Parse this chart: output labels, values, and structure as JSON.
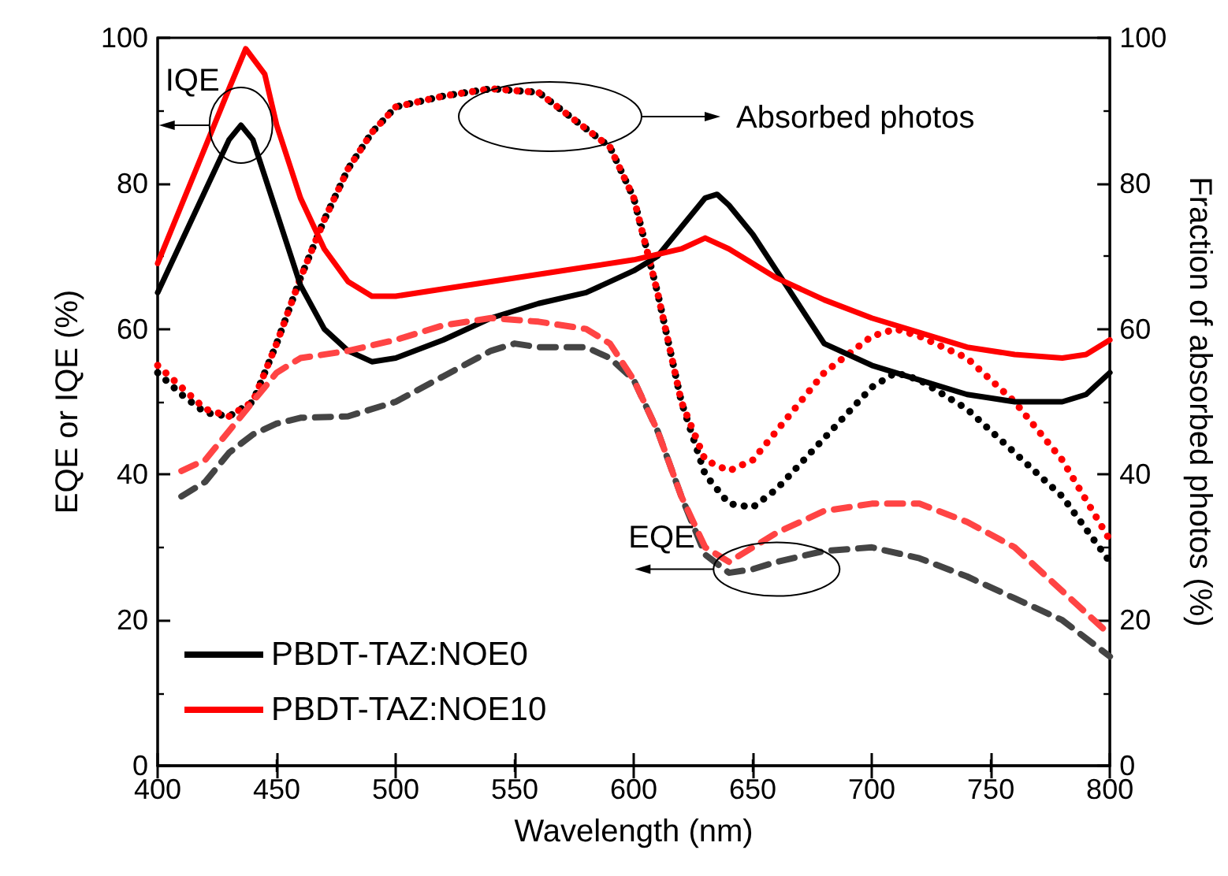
{
  "chart_data": {
    "type": "line",
    "xlabel": "Wavelength (nm)",
    "ylabel": "EQE or IQE (%)",
    "y2label": "Fraction of absorbed photos (%)",
    "xlim": [
      400,
      800
    ],
    "xticks": [
      400,
      450,
      500,
      550,
      600,
      650,
      700,
      750,
      800
    ],
    "ylim": [
      0,
      100
    ],
    "yticks": [
      0,
      20,
      40,
      60,
      80,
      100
    ],
    "y2lim": [
      0,
      100
    ],
    "y2ticks": [
      0,
      20,
      40,
      60,
      80,
      100
    ],
    "grid": false,
    "legend": "bottom left",
    "marker": "none",
    "annotations": [
      {
        "text": "IQE",
        "x": 435,
        "y": 88
      },
      "Absorbed photos",
      {
        "text": "EQE",
        "x": 660,
        "y": 27
      }
    ],
    "series": [
      {
        "name": "PBDT-TAZ:NOE0",
        "color": "#000000",
        "line_style": "solid",
        "x": [
          400,
          410,
          420,
          430,
          435,
          440,
          450,
          460,
          470,
          480,
          490,
          500,
          520,
          540,
          560,
          580,
          600,
          610,
          620,
          630,
          635,
          640,
          650,
          660,
          670,
          680,
          700,
          720,
          740,
          760,
          780,
          790,
          800
        ],
        "values": [
          65,
          72,
          79,
          86,
          88,
          86,
          76,
          66,
          60,
          57,
          55.5,
          56,
          58.5,
          61.5,
          63.5,
          65,
          68,
          70,
          74,
          78,
          78.5,
          77,
          73,
          68,
          63,
          58,
          55,
          53,
          51,
          50,
          50,
          51,
          54
        ]
      },
      {
        "name": "PBDT-TAZ:NOE10",
        "color": "#ff0000",
        "line_style": "solid",
        "x": [
          400,
          410,
          420,
          430,
          437,
          445,
          450,
          460,
          470,
          480,
          490,
          500,
          520,
          540,
          560,
          580,
          600,
          620,
          630,
          640,
          650,
          660,
          680,
          700,
          720,
          740,
          760,
          780,
          790,
          800
        ],
        "values": [
          69,
          77,
          85,
          93,
          98.5,
          95,
          88,
          78,
          71,
          66.5,
          64.5,
          64.5,
          65.5,
          66.5,
          67.5,
          68.5,
          69.5,
          71,
          72.5,
          71,
          69,
          67,
          64,
          61.5,
          59.5,
          57.5,
          56.5,
          56,
          56.5,
          58.5
        ]
      },
      {
        "color": "#000000",
        "line_style": "dotted",
        "x": [
          400,
          410,
          420,
          430,
          440,
          450,
          460,
          470,
          480,
          490,
          500,
          520,
          540,
          560,
          570,
          580,
          590,
          600,
          610,
          620,
          630,
          640,
          650,
          660,
          680,
          700,
          710,
          720,
          740,
          760,
          780,
          800
        ],
        "values": [
          54,
          51,
          48.5,
          48,
          50,
          58,
          67,
          75,
          82,
          87,
          90.5,
          92,
          93,
          92.5,
          90,
          87.5,
          85,
          78,
          65,
          50,
          40,
          36,
          35.5,
          38,
          45,
          52,
          54,
          53,
          49,
          43,
          37,
          28
        ]
      },
      {
        "color": "#ff0000",
        "line_style": "dotted",
        "x": [
          400,
          410,
          420,
          430,
          440,
          450,
          460,
          470,
          480,
          490,
          500,
          520,
          540,
          560,
          570,
          580,
          590,
          600,
          610,
          620,
          630,
          640,
          650,
          660,
          680,
          700,
          710,
          720,
          740,
          760,
          780,
          800
        ],
        "values": [
          55,
          52,
          49,
          48,
          50,
          58,
          67,
          75,
          82,
          87,
          90.5,
          92,
          93,
          92.5,
          90,
          87.5,
          85,
          78,
          65,
          50,
          42,
          40.5,
          42,
          46,
          54,
          59,
          60,
          59,
          56,
          50,
          42,
          31
        ]
      },
      {
        "color": "#444444",
        "line_style": "dashed",
        "x": [
          410,
          420,
          430,
          440,
          450,
          460,
          480,
          500,
          520,
          540,
          550,
          560,
          580,
          590,
          600,
          610,
          620,
          630,
          640,
          650,
          660,
          680,
          700,
          720,
          740,
          760,
          780,
          800
        ],
        "values": [
          37,
          39,
          43,
          45.5,
          47,
          47.8,
          48,
          50,
          53.5,
          57,
          58,
          57.5,
          57.5,
          56,
          53,
          46,
          37,
          29,
          26.5,
          27,
          28,
          29.5,
          30,
          28.5,
          26,
          23,
          20,
          15
        ]
      },
      {
        "color": "#ff4444",
        "line_style": "dashed",
        "x": [
          410,
          420,
          430,
          440,
          450,
          460,
          480,
          500,
          520,
          540,
          560,
          580,
          590,
          600,
          610,
          620,
          630,
          640,
          650,
          660,
          680,
          700,
          720,
          740,
          760,
          780,
          800
        ],
        "values": [
          40.5,
          42,
          46,
          50,
          54,
          56,
          57,
          58.5,
          60.5,
          61.5,
          61,
          60,
          58,
          53,
          46,
          37,
          30,
          28,
          30,
          32,
          35,
          36,
          36,
          33.5,
          30,
          24,
          18
        ]
      }
    ]
  }
}
